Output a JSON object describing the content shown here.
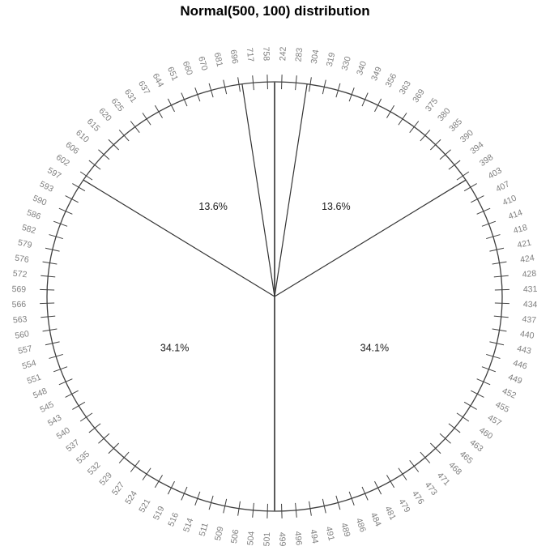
{
  "title": "Normal(500, 100) distribution",
  "chart_data": {
    "type": "pie",
    "variant": "percentile-clock-plot",
    "title": "Normal(500, 100) distribution",
    "distribution": {
      "family": "Normal",
      "mean": 500,
      "sd": 100
    },
    "note": "100 percentile tick labels placed clockwise from top at fractions (k-0.5)/100 of the circle; values are the corresponding quantiles of Normal(500,100).",
    "tick_labels": [
      242,
      283,
      304,
      319,
      330,
      340,
      349,
      356,
      363,
      369,
      375,
      380,
      385,
      390,
      394,
      398,
      403,
      407,
      410,
      414,
      418,
      421,
      424,
      428,
      431,
      434,
      437,
      440,
      443,
      446,
      449,
      452,
      455,
      457,
      460,
      463,
      465,
      468,
      471,
      473,
      476,
      479,
      481,
      484,
      486,
      489,
      491,
      494,
      496,
      499,
      501,
      504,
      506,
      509,
      511,
      514,
      516,
      519,
      521,
      524,
      527,
      529,
      532,
      535,
      537,
      540,
      543,
      545,
      548,
      551,
      554,
      557,
      560,
      563,
      566,
      569,
      572,
      576,
      579,
      582,
      586,
      590,
      593,
      597,
      602,
      606,
      610,
      615,
      620,
      625,
      631,
      637,
      644,
      651,
      660,
      670,
      681,
      696,
      717,
      758
    ],
    "sectors": [
      {
        "from_fraction": 0.0,
        "to_fraction": 0.0228,
        "percent": 2.3,
        "label": ""
      },
      {
        "from_fraction": 0.0228,
        "to_fraction": 0.1587,
        "percent": 13.6,
        "label": "13.6%"
      },
      {
        "from_fraction": 0.1587,
        "to_fraction": 0.5,
        "percent": 34.1,
        "label": "34.1%"
      },
      {
        "from_fraction": 0.5,
        "to_fraction": 0.8413,
        "percent": 34.1,
        "label": "34.1%"
      },
      {
        "from_fraction": 0.8413,
        "to_fraction": 0.9772,
        "percent": 13.6,
        "label": "13.6%"
      },
      {
        "from_fraction": 0.9772,
        "to_fraction": 1.0,
        "percent": 2.3,
        "label": ""
      }
    ],
    "boundaries": [
      {
        "fraction": 0.0,
        "emphasis": true
      },
      {
        "fraction": 0.0228,
        "emphasis": false
      },
      {
        "fraction": 0.1587,
        "emphasis": false
      },
      {
        "fraction": 0.5,
        "emphasis": true
      },
      {
        "fraction": 0.8413,
        "emphasis": false
      },
      {
        "fraction": 0.9772,
        "emphasis": false
      }
    ],
    "colors": {
      "background": "#ffffff",
      "outline": "#3f3f3f",
      "tick": "#3f3f3f",
      "tick_label": "#7f7f7f",
      "boundary_line": "#333333",
      "boundary_line_emphasis": "#5a5a5a",
      "sector_label": "#1a1a1a",
      "title": "#000000"
    },
    "layout": {
      "legend": false,
      "grid": false
    }
  }
}
